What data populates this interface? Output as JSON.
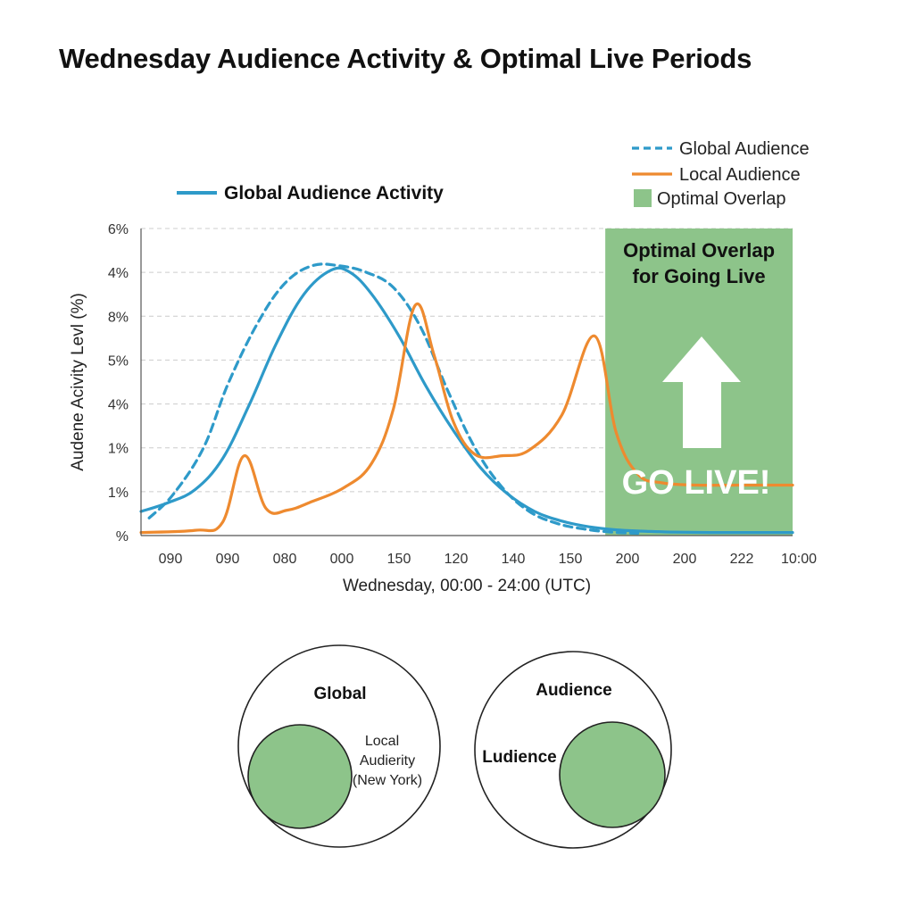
{
  "page_title": "Wednesday Audience Activity & Optimal Live Periods",
  "colors": {
    "global": "#2e9ac9",
    "local": "#ee8a2f",
    "overlap": "#8dc48a",
    "grid": "#cccccc",
    "text": "#222222"
  },
  "chart_data": {
    "type": "line",
    "title": "Wednesday Audience Activity & Optimal Live Periods",
    "xlabel": "Wednesday, 00:00 - 24:00 (UTC)",
    "ylabel": "Audene Acivity Levl (%)",
    "x_tick_labels": [
      "090",
      "090",
      "080",
      "000",
      "150",
      "120",
      "140",
      "150",
      "200",
      "200",
      "222",
      "10:00"
    ],
    "y_tick_labels": [
      "%",
      "1%",
      "1%",
      "4%",
      "5%",
      "8%",
      "4%",
      "6%"
    ],
    "xlim": [
      0,
      24
    ],
    "ylim": [
      0,
      7
    ],
    "grid": true,
    "legend_position": "top-right",
    "inline_legend": "Global Audience Activity",
    "legend": [
      {
        "label": "Global Audience",
        "style": "dashed",
        "color": "#2e9ac9"
      },
      {
        "label": "Local Audience",
        "style": "solid",
        "color": "#ee8a2f"
      },
      {
        "label": "Optimal Overlap",
        "style": "patch",
        "color": "#8dc48a"
      }
    ],
    "series": [
      {
        "name": "Global Audience Activity",
        "style": "solid",
        "color": "#2e9ac9",
        "x": [
          0,
          1,
          2,
          3,
          4,
          5,
          6,
          7,
          7.7,
          8.5,
          9.5,
          10.5,
          11.5,
          12.5,
          13.5,
          14.5,
          15.5,
          16.5,
          17.5,
          18.5,
          19.5,
          21,
          22.5,
          24
        ],
        "y": [
          0.55,
          0.75,
          1.05,
          1.75,
          3.0,
          4.4,
          5.5,
          6.05,
          6.0,
          5.5,
          4.55,
          3.4,
          2.4,
          1.55,
          0.95,
          0.55,
          0.33,
          0.2,
          0.13,
          0.1,
          0.08,
          0.07,
          0.07,
          0.07
        ]
      },
      {
        "name": "Global Audience",
        "style": "dashed",
        "color": "#2e9ac9",
        "x": [
          0.3,
          1.2,
          2.3,
          3.2,
          4.3,
          5.3,
          6.3,
          7.3,
          8.3,
          9.3,
          10.3,
          11.3,
          12.3,
          13.3,
          14.3,
          15.3,
          16.3,
          17.3,
          18.3
        ],
        "y": [
          0.4,
          0.95,
          2.0,
          3.45,
          4.85,
          5.75,
          6.15,
          6.15,
          6.0,
          5.65,
          4.75,
          3.3,
          2.0,
          1.1,
          0.55,
          0.28,
          0.15,
          0.08,
          0.05
        ]
      },
      {
        "name": "Local Audience",
        "style": "solid",
        "color": "#ee8a2f",
        "x": [
          0,
          2,
          3,
          3.8,
          4.6,
          5.4,
          6.2,
          7.5,
          8.5,
          9.3,
          10.1,
          10.8,
          11.5,
          12.3,
          13.3,
          14.3,
          15.5,
          16.7,
          17.5,
          18.3,
          19.2,
          20.5,
          22,
          24
        ],
        "y": [
          0.07,
          0.12,
          0.3,
          1.82,
          0.62,
          0.58,
          0.75,
          1.1,
          1.65,
          2.9,
          5.25,
          4.1,
          2.6,
          1.85,
          1.82,
          1.95,
          2.75,
          4.55,
          2.35,
          1.4,
          1.2,
          1.15,
          1.15,
          1.15
        ]
      }
    ],
    "shaded_regions": [
      {
        "label": "Optimal Overlap for Going Live",
        "x_start": 17.1,
        "x_end": 24,
        "color": "#8dc48a"
      }
    ],
    "annotations": {
      "overlap_title": [
        "Optimal Overlap",
        "for Going Live"
      ],
      "go_live": "GO LIVE!"
    }
  },
  "venn": [
    {
      "top_label": "Global",
      "inner_label": [
        "Local",
        "Audierity",
        "(New York)"
      ],
      "side_label": ""
    },
    {
      "top_label": "Audience",
      "inner_label": [],
      "side_label": "Ludience"
    }
  ]
}
